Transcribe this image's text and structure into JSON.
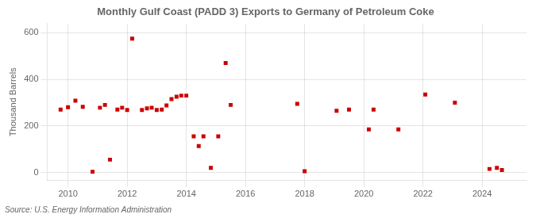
{
  "chart_data": {
    "type": "scatter",
    "title": "Monthly Gulf Coast (PADD 3) Exports to Germany of Petroleum Coke",
    "ylabel": "Thousand Barrels",
    "source": "Source: U.S. Energy Information Administration",
    "color": "#cc0000",
    "marker": "square",
    "grid": true,
    "xlim": [
      2009.3,
      2025.5
    ],
    "ylim": [
      -35,
      640
    ],
    "xticks": [
      2010,
      2012,
      2014,
      2016,
      2018,
      2020,
      2022,
      2024
    ],
    "yticks": [
      0,
      200,
      400,
      600
    ],
    "x": [
      2009.75,
      2010.0,
      2010.25,
      2010.5,
      2010.83,
      2011.08,
      2011.25,
      2011.42,
      2011.67,
      2011.83,
      2012.0,
      2012.17,
      2012.5,
      2012.67,
      2012.83,
      2013.0,
      2013.17,
      2013.33,
      2013.5,
      2013.67,
      2013.83,
      2014.0,
      2014.25,
      2014.42,
      2014.58,
      2014.83,
      2015.08,
      2015.33,
      2015.5,
      2017.75,
      2018.0,
      2019.08,
      2019.5,
      2020.17,
      2020.33,
      2021.17,
      2022.08,
      2023.08,
      2024.25,
      2024.5,
      2024.67
    ],
    "values": [
      270,
      280,
      308,
      282,
      3,
      278,
      290,
      55,
      270,
      278,
      268,
      575,
      268,
      275,
      278,
      268,
      270,
      288,
      315,
      325,
      330,
      330,
      155,
      113,
      155,
      20,
      155,
      470,
      290,
      295,
      5,
      265,
      270,
      185,
      270,
      185,
      335,
      300,
      15,
      20,
      10
    ]
  }
}
